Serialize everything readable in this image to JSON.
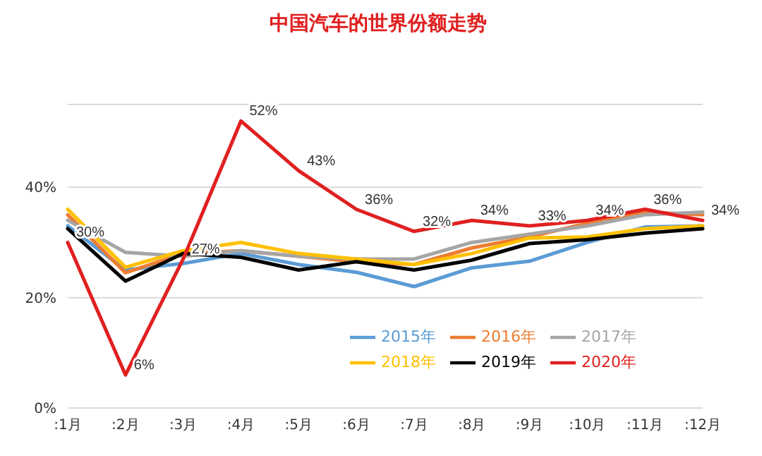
{
  "chart_data": {
    "type": "line",
    "title": "中国汽车的世界份额走势",
    "categories": [
      ":1月",
      ":2月",
      ":3月",
      ":4月",
      ":5月",
      ":6月",
      ":7月",
      ":8月",
      ":9月",
      ":10月",
      ":11月",
      ":12月"
    ],
    "series": [
      {
        "name": "2015年",
        "color": "#5b9bd5",
        "values": [
          33,
          25,
          26.2,
          28,
          26,
          24.6,
          22,
          25.4,
          26.6,
          30,
          32.8,
          33
        ]
      },
      {
        "name": "2016年",
        "color": "#ed7d31",
        "values": [
          35,
          24.5,
          28,
          28.5,
          27.5,
          26.5,
          26,
          29,
          31,
          33.5,
          35.5,
          35
        ]
      },
      {
        "name": "2017年",
        "color": "#a5a5a5",
        "values": [
          34,
          28.2,
          27.5,
          28.5,
          27.5,
          27,
          27,
          30,
          31.5,
          33,
          35,
          35.5
        ]
      },
      {
        "name": "2018年",
        "color": "#ffc000",
        "values": [
          36,
          25.5,
          28.5,
          30,
          28,
          27,
          26,
          28,
          30.8,
          31,
          32.5,
          33
        ]
      },
      {
        "name": "2019年",
        "color": "#000000",
        "values": [
          32.5,
          23,
          28,
          27.3,
          25,
          26.5,
          25,
          26.8,
          29.8,
          30.5,
          31.7,
          32.5
        ]
      },
      {
        "name": "2020年",
        "color": "#e02020",
        "values": [
          30,
          6,
          27,
          52,
          43,
          36,
          32,
          34,
          33,
          34,
          36,
          34
        ],
        "value_labels": [
          "30%",
          "6%",
          "27%",
          "52%",
          "43%",
          "36%",
          "32%",
          "34%",
          "33%",
          "34%",
          "36%",
          "34%"
        ]
      }
    ],
    "ylim": [
      0,
      55
    ],
    "yticks": [
      {
        "value": 0,
        "label": "0%"
      },
      {
        "value": 20,
        "label": "20%"
      },
      {
        "value": 40,
        "label": "40%"
      }
    ],
    "grid": "y",
    "legend": "bottom right"
  }
}
